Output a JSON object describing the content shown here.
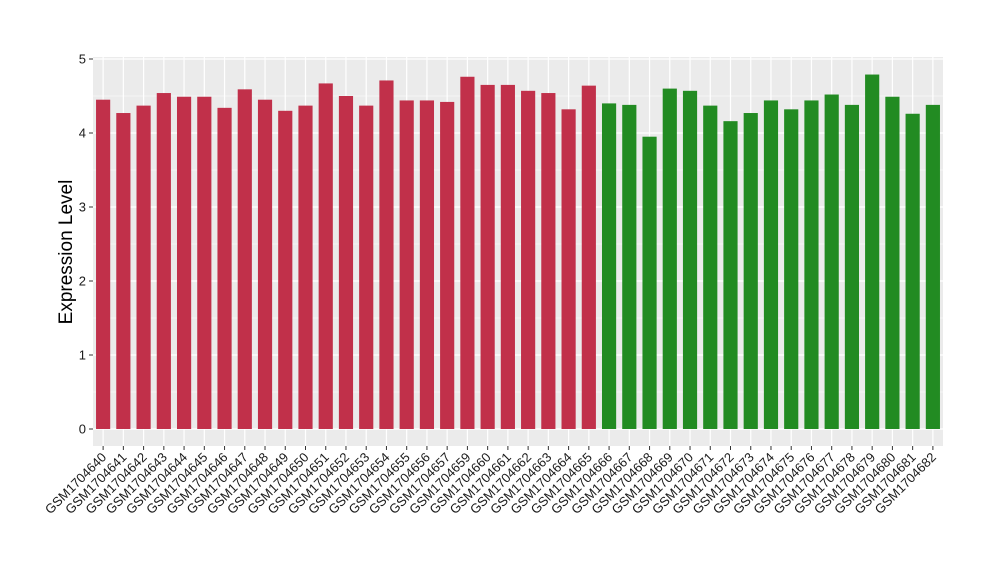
{
  "chart_data": {
    "type": "bar",
    "title": "",
    "xlabel": "",
    "ylabel": "Expression Level",
    "ylim": [
      0,
      5
    ],
    "yticks": [
      0,
      1,
      2,
      3,
      4,
      5
    ],
    "grid": true,
    "legend": "none",
    "categories": [
      "GSM1704640",
      "GSM1704641",
      "GSM1704642",
      "GSM1704643",
      "GSM1704644",
      "GSM1704645",
      "GSM1704646",
      "GSM1704647",
      "GSM1704648",
      "GSM1704649",
      "GSM1704650",
      "GSM1704651",
      "GSM1704652",
      "GSM1704653",
      "GSM1704654",
      "GSM1704655",
      "GSM1704656",
      "GSM1704657",
      "GSM1704659",
      "GSM1704660",
      "GSM1704661",
      "GSM1704662",
      "GSM1704663",
      "GSM1704664",
      "GSM1704665",
      "GSM1704666",
      "GSM1704667",
      "GSM1704668",
      "GSM1704669",
      "GSM1704670",
      "GSM1704671",
      "GSM1704672",
      "GSM1704673",
      "GSM1704674",
      "GSM1704675",
      "GSM1704676",
      "GSM1704677",
      "GSM1704678",
      "GSM1704679",
      "GSM1704680",
      "GSM1704681",
      "GSM1704682"
    ],
    "values": [
      4.45,
      4.27,
      4.37,
      4.54,
      4.49,
      4.49,
      4.34,
      4.59,
      4.45,
      4.3,
      4.37,
      4.67,
      4.5,
      4.37,
      4.71,
      4.44,
      4.44,
      4.42,
      4.76,
      4.65,
      4.65,
      4.57,
      4.54,
      4.32,
      4.64,
      4.4,
      4.38,
      3.95,
      4.6,
      4.57,
      4.37,
      4.16,
      4.27,
      4.44,
      4.32,
      4.44,
      4.52,
      4.38,
      4.79,
      4.49,
      4.26,
      4.38
    ],
    "group_sizes": [
      25,
      17
    ],
    "colors": [
      "#c1304a",
      "#228b22"
    ],
    "panel_background": "#ebebeb",
    "gridline_color": "#ffffff"
  }
}
